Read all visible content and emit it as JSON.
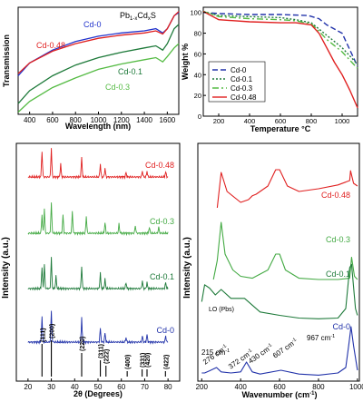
{
  "chart_data": [
    {
      "type": "line",
      "title": "Pb1-xCdxS",
      "title_main": "Pb",
      "title_sub1": "1-x",
      "title_mid": "Cd",
      "title_sub2": "x",
      "title_end": "S",
      "xlabel": "Wavelength (nm)",
      "ylabel": "Transmission",
      "xlim": [
        300,
        1700
      ],
      "ylim": [
        0,
        1
      ],
      "xticks": [
        400,
        600,
        800,
        1000,
        1200,
        1400,
        1600
      ],
      "grid": false,
      "series": [
        {
          "name": "Cd-0",
          "color": "#2233cc",
          "x": [
            300,
            400,
            600,
            800,
            1000,
            1200,
            1400,
            1500,
            1560,
            1600,
            1660,
            1700
          ],
          "y": [
            0.36,
            0.48,
            0.6,
            0.68,
            0.73,
            0.76,
            0.78,
            0.8,
            0.76,
            0.8,
            0.92,
            0.95
          ]
        },
        {
          "name": "Cd-0.48",
          "color": "#e02020",
          "x": [
            300,
            400,
            600,
            800,
            1000,
            1200,
            1400,
            1500,
            1560,
            1600,
            1660,
            1700
          ],
          "y": [
            0.38,
            0.48,
            0.59,
            0.66,
            0.71,
            0.74,
            0.76,
            0.78,
            0.75,
            0.8,
            0.92,
            0.96
          ]
        },
        {
          "name": "Cd-0.1",
          "color": "#1e7a3a",
          "x": [
            300,
            400,
            600,
            800,
            1000,
            1200,
            1400,
            1500,
            1560,
            1600,
            1660,
            1700
          ],
          "y": [
            0.1,
            0.22,
            0.36,
            0.46,
            0.53,
            0.58,
            0.62,
            0.64,
            0.6,
            0.66,
            0.8,
            0.84
          ]
        },
        {
          "name": "Cd-0.3",
          "color": "#55bb44",
          "x": [
            300,
            400,
            600,
            800,
            1000,
            1200,
            1400,
            1500,
            1560,
            1600,
            1660,
            1700
          ],
          "y": [
            0.02,
            0.12,
            0.25,
            0.34,
            0.42,
            0.47,
            0.51,
            0.53,
            0.49,
            0.54,
            0.62,
            0.66
          ]
        }
      ],
      "labels": [
        "Cd-0",
        "Cd-0.48",
        "Cd-0.1",
        "Cd-0.3"
      ]
    },
    {
      "type": "line",
      "title": "",
      "xlabel": "Temperature °C",
      "ylabel": "Weight %",
      "xlim": [
        100,
        1100
      ],
      "ylim": [
        0,
        105
      ],
      "xticks": [
        200,
        400,
        600,
        800,
        1000
      ],
      "yticks": [
        0,
        20,
        40,
        60,
        80,
        100
      ],
      "grid": false,
      "legend": "bottom-left",
      "series": [
        {
          "name": "Cd-0",
          "color": "#2233aa",
          "dash": "6,3",
          "x": [
            100,
            200,
            400,
            600,
            780,
            850,
            900,
            950,
            1000,
            1050,
            1100
          ],
          "y": [
            100,
            99,
            98,
            98,
            97,
            94,
            88,
            84,
            80,
            64,
            48
          ]
        },
        {
          "name": "Cd-0.1",
          "color": "#1e7a3a",
          "dash": "2,2",
          "x": [
            100,
            200,
            400,
            600,
            700,
            800,
            850,
            900,
            950,
            1000,
            1050,
            1100
          ],
          "y": [
            101,
            97,
            96,
            95,
            93,
            90,
            84,
            78,
            72,
            66,
            58,
            50
          ]
        },
        {
          "name": "Cd-0.3",
          "color": "#55bb44",
          "dash": "7,3,2,3",
          "x": [
            100,
            200,
            400,
            600,
            700,
            800,
            850,
            900,
            950,
            1000,
            1050,
            1100
          ],
          "y": [
            101,
            96,
            94,
            93,
            92,
            89,
            82,
            74,
            68,
            62,
            54,
            46
          ]
        },
        {
          "name": "Cd-0.48",
          "color": "#e02020",
          "dash": "",
          "x": [
            100,
            200,
            400,
            600,
            700,
            800,
            850,
            900,
            950,
            1000,
            1050,
            1100
          ],
          "y": [
            101,
            93,
            91,
            90,
            90,
            88,
            80,
            66,
            52,
            40,
            25,
            8
          ]
        }
      ]
    },
    {
      "type": "line",
      "title": "",
      "xlabel": "2θ (Degrees)",
      "ylabel": "Intensity (a.u.)",
      "xlim": [
        15,
        85
      ],
      "xticks": [
        20,
        30,
        40,
        50,
        60,
        70,
        80
      ],
      "grid": false,
      "series": [
        {
          "name": "Cd-0.48",
          "color": "#e02020",
          "peaks": [
            [
              26,
              0.9
            ],
            [
              30,
              1
            ],
            [
              34,
              0.45
            ],
            [
              43,
              0.7
            ],
            [
              51,
              0.45
            ],
            [
              53,
              0.3
            ],
            [
              62,
              0.15
            ],
            [
              69,
              0.2
            ],
            [
              71,
              0.2
            ],
            [
              79,
              0.18
            ]
          ]
        },
        {
          "name": "Cd-0.3",
          "color": "#44aa44",
          "peaks": [
            [
              26,
              0.6
            ],
            [
              27,
              0.8
            ],
            [
              30,
              1
            ],
            [
              35,
              0.6
            ],
            [
              39,
              0.7
            ],
            [
              45,
              0.55
            ],
            [
              53,
              0.35
            ],
            [
              59,
              0.3
            ],
            [
              66,
              0.25
            ],
            [
              72,
              0.2
            ],
            [
              76,
              0.2
            ]
          ]
        },
        {
          "name": "Cd-0.1",
          "color": "#1e7a3a",
          "peaks": [
            [
              26,
              0.7
            ],
            [
              27,
              0.8
            ],
            [
              30,
              1
            ],
            [
              32,
              0.4
            ],
            [
              43,
              0.75
            ],
            [
              51,
              0.5
            ],
            [
              53,
              0.3
            ],
            [
              62,
              0.2
            ],
            [
              69,
              0.25
            ],
            [
              71,
              0.2
            ],
            [
              79,
              0.2
            ]
          ]
        },
        {
          "name": "Cd-0",
          "color": "#2233aa",
          "peaks": [
            [
              26,
              0.8
            ],
            [
              30,
              1
            ],
            [
              43,
              0.8
            ],
            [
              51,
              0.45
            ],
            [
              53,
              0.3
            ],
            [
              62,
              0.15
            ],
            [
              69,
              0.2
            ],
            [
              71,
              0.25
            ],
            [
              79,
              0.2
            ]
          ]
        }
      ],
      "reference": [
        {
          "pos": 26,
          "label": "(111)",
          "h": 0.9
        },
        {
          "pos": 30,
          "label": "(200)",
          "h": 1.0
        },
        {
          "pos": 43,
          "label": "(220)",
          "h": 0.65
        },
        {
          "pos": 51,
          "label": "(311)",
          "h": 0.45
        },
        {
          "pos": 53.4,
          "label": "(222)",
          "h": 0.3
        },
        {
          "pos": 62.5,
          "label": "(400)",
          "h": 0.15
        },
        {
          "pos": 68.9,
          "label": "(331)",
          "h": 0.2
        },
        {
          "pos": 71,
          "label": "(420)",
          "h": 0.2
        },
        {
          "pos": 78.9,
          "label": "(422)",
          "h": 0.15
        }
      ]
    },
    {
      "type": "line",
      "title": "",
      "xlabel": "Wavenumber (cm",
      "xlabel_sup": "-1",
      "xlabel_end": ")",
      "ylabel": "Intensity (a.u.)",
      "xlim": [
        180,
        1010
      ],
      "xticks": [
        200,
        400,
        600,
        800,
        1000
      ],
      "grid": false,
      "series": [
        {
          "name": "Cd-0.48",
          "color": "#e02020",
          "x": [
            280,
            300,
            330,
            400,
            440,
            460,
            480,
            540,
            580,
            600,
            640,
            700,
            800,
            900,
            960,
            965,
            980,
            1000
          ],
          "y": [
            0.1,
            0.75,
            0.4,
            0.2,
            0.25,
            0.32,
            0.35,
            0.5,
            0.8,
            0.8,
            0.5,
            0.4,
            0.45,
            0.52,
            0.6,
            0.78,
            0.55,
            0.5
          ]
        },
        {
          "name": "Cd-0.3",
          "color": "#44aa44",
          "x": [
            260,
            280,
            300,
            320,
            360,
            400,
            460,
            540,
            580,
            600,
            630,
            700,
            800,
            900,
            960,
            970,
            985,
            1000
          ],
          "y": [
            0.1,
            0.4,
            1.0,
            0.5,
            0.25,
            0.15,
            0.12,
            0.25,
            0.5,
            0.5,
            0.25,
            0.12,
            0.1,
            0.1,
            0.12,
            0.45,
            0.15,
            0.1
          ]
        },
        {
          "name": "Cd-0.1",
          "color": "#1e7a3a",
          "x": [
            200,
            215,
            240,
            270,
            300,
            350,
            420,
            500,
            600,
            700,
            800,
            900,
            940,
            960,
            970,
            990,
            1000
          ],
          "y": [
            0.3,
            0.55,
            0.5,
            0.4,
            0.48,
            0.35,
            0.35,
            0.15,
            0.1,
            0.06,
            0.05,
            0.06,
            0.2,
            0.8,
            0.85,
            0.2,
            0.1
          ]
        },
        {
          "name": "Cd-0",
          "color": "#2233aa",
          "x": [
            200,
            215,
            240,
            276,
            300,
            350,
            400,
            430,
            460,
            500,
            607,
            700,
            800,
            900,
            940,
            955,
            967,
            980,
            1000
          ],
          "y": [
            0.1,
            0.1,
            0.14,
            0.2,
            0.12,
            0.1,
            0.12,
            0.3,
            0.12,
            0.08,
            0.15,
            0.08,
            0.06,
            0.1,
            0.2,
            0.6,
            0.95,
            0.6,
            0.15
          ]
        }
      ],
      "annotations": [
        "LO (Pbs)",
        "215 cm",
        "276 cm",
        "372 cm",
        "430 cm",
        "607 cm",
        "967 cm"
      ],
      "annotation_sup": "-1"
    }
  ]
}
